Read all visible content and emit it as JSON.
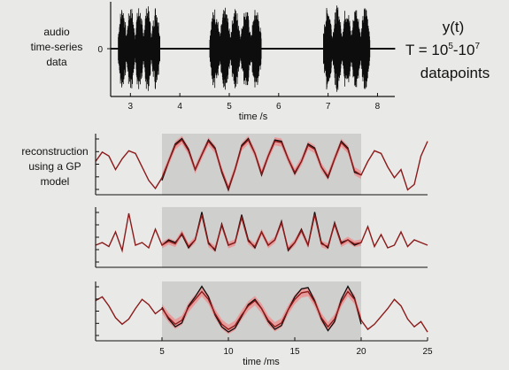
{
  "side_labels": {
    "audio": [
      "audio",
      "time-series",
      "data"
    ],
    "reconstruction": [
      "reconstruction",
      "using a GP",
      "model"
    ]
  },
  "formula": {
    "signal": "y(t)",
    "count_prefix": "T = 10",
    "exp1": "5",
    "dash": "-10",
    "exp2": "7",
    "unit": "datapoints"
  },
  "colors": {
    "waveform": "#0d0d0d",
    "reconstruction": "#8b1a1a",
    "uncertainty": "#f08a8a",
    "shaded_region": "#cfcfcd"
  },
  "chart_data": [
    {
      "type": "line",
      "name": "audio",
      "xlabel": "time /s",
      "xlim": [
        2.6,
        8.35
      ],
      "xticks": [
        3,
        4,
        5,
        6,
        7,
        8
      ],
      "yticks": [
        "0"
      ],
      "ylim": [
        -1,
        1
      ],
      "bursts": [
        {
          "start": 2.75,
          "end": 3.6,
          "amp": 0.95
        },
        {
          "start": 4.6,
          "end": 5.65,
          "amp": 0.9
        },
        {
          "start": 6.9,
          "end": 7.85,
          "amp": 0.95
        }
      ],
      "grid": false
    },
    {
      "type": "line",
      "name": "reconstruction-1",
      "xlim": [
        0,
        25
      ],
      "shaded_interval": [
        5,
        20
      ],
      "series": [
        {
          "role": "data",
          "x": [
            5,
            5.5,
            6,
            6.5,
            7,
            7.5,
            8,
            8.5,
            9,
            9.5,
            10,
            10.5,
            11,
            11.5,
            12,
            12.5,
            13,
            13.5,
            14,
            14.5,
            15,
            15.5,
            16,
            16.5,
            17,
            17.5,
            18,
            18.5,
            19,
            19.5,
            20
          ],
          "values": [
            -0.6,
            0.1,
            0.75,
            0.95,
            0.55,
            -0.2,
            0.35,
            0.9,
            0.6,
            -0.3,
            -0.95,
            -0.2,
            0.7,
            0.95,
            0.4,
            -0.4,
            0.3,
            0.9,
            0.85,
            0.2,
            -0.35,
            0.1,
            0.75,
            0.6,
            -0.1,
            -0.5,
            0.2,
            0.85,
            0.6,
            -0.3,
            -0.4
          ]
        },
        {
          "role": "reconstruction",
          "x": [
            0,
            0.5,
            1,
            1.5,
            2,
            2.5,
            3,
            3.5,
            4,
            4.5,
            5,
            5.5,
            6,
            6.5,
            7,
            7.5,
            8,
            8.5,
            9,
            9.5,
            10,
            10.5,
            11,
            11.5,
            12,
            12.5,
            13,
            13.5,
            14,
            14.5,
            15,
            15.5,
            16,
            16.5,
            17,
            17.5,
            18,
            18.5,
            19,
            19.5,
            20,
            20.5,
            21,
            21.5,
            22,
            22.5,
            23,
            23.5,
            24,
            24.5,
            25
          ],
          "values": [
            0.1,
            0.45,
            0.3,
            -0.2,
            0.2,
            0.5,
            0.4,
            -0.1,
            -0.6,
            -0.9,
            -0.5,
            0.1,
            0.7,
            0.9,
            0.5,
            -0.2,
            0.35,
            0.85,
            0.55,
            -0.25,
            -0.9,
            -0.2,
            0.65,
            0.9,
            0.4,
            -0.35,
            0.3,
            0.85,
            0.8,
            0.2,
            -0.3,
            0.1,
            0.7,
            0.55,
            -0.1,
            -0.45,
            0.2,
            0.8,
            0.55,
            -0.25,
            -0.4,
            0.1,
            0.5,
            0.4,
            -0.1,
            -0.5,
            -0.2,
            -0.95,
            -0.75,
            0.3,
            0.85
          ]
        }
      ],
      "band_halfwidth": 0.15,
      "grid": false
    },
    {
      "type": "line",
      "name": "reconstruction-2",
      "xlim": [
        0,
        25
      ],
      "shaded_interval": [
        5,
        20
      ],
      "series": [
        {
          "role": "data",
          "x": [
            5,
            5.5,
            6,
            6.5,
            7,
            7.5,
            8,
            8.5,
            9,
            9.5,
            10,
            10.5,
            11,
            11.5,
            12,
            12.5,
            13,
            13.5,
            14,
            14.5,
            15,
            15.5,
            16,
            16.5,
            17,
            17.5,
            18,
            18.5,
            19,
            19.5,
            20
          ],
          "values": [
            -0.3,
            -0.1,
            -0.2,
            0.1,
            -0.4,
            -0.1,
            0.95,
            -0.2,
            -0.5,
            0.5,
            -0.3,
            -0.2,
            0.85,
            -0.1,
            -0.4,
            0.2,
            -0.3,
            -0.1,
            0.6,
            -0.5,
            -0.2,
            0.3,
            -0.3,
            0.95,
            -0.2,
            -0.4,
            0.55,
            -0.2,
            -0.1,
            -0.3,
            -0.2
          ]
        },
        {
          "role": "reconstruction",
          "x": [
            0,
            0.5,
            1,
            1.5,
            2,
            2.5,
            3,
            3.5,
            4,
            4.5,
            5,
            5.5,
            6,
            6.5,
            7,
            7.5,
            8,
            8.5,
            9,
            9.5,
            10,
            10.5,
            11,
            11.5,
            12,
            12.5,
            13,
            13.5,
            14,
            14.5,
            15,
            15.5,
            16,
            16.5,
            17,
            17.5,
            18,
            18.5,
            19,
            19.5,
            20,
            20.5,
            21,
            21.5,
            22,
            22.5,
            23,
            23.5,
            24,
            24.5,
            25
          ],
          "values": [
            -0.3,
            -0.2,
            -0.35,
            0.2,
            -0.5,
            0.9,
            -0.3,
            -0.2,
            -0.4,
            0.3,
            -0.3,
            -0.15,
            -0.25,
            0.15,
            -0.35,
            -0.1,
            0.85,
            -0.25,
            -0.45,
            0.45,
            -0.3,
            -0.2,
            0.75,
            -0.15,
            -0.35,
            0.2,
            -0.3,
            -0.1,
            0.55,
            -0.45,
            -0.2,
            0.25,
            -0.3,
            0.85,
            -0.25,
            -0.35,
            0.5,
            -0.25,
            -0.1,
            -0.25,
            -0.2,
            0.4,
            -0.35,
            0.1,
            -0.4,
            -0.3,
            0.2,
            -0.35,
            -0.1,
            -0.2,
            -0.3
          ]
        }
      ],
      "band_halfwidth": 0.12,
      "grid": false
    },
    {
      "type": "line",
      "name": "reconstruction-3",
      "xlabel": "time /ms",
      "xlim": [
        0,
        25
      ],
      "xticks": [
        5,
        10,
        15,
        20,
        25
      ],
      "shaded_interval": [
        5,
        20
      ],
      "series": [
        {
          "role": "data",
          "x": [
            5,
            5.5,
            6,
            6.5,
            7,
            7.5,
            8,
            8.5,
            9,
            9.5,
            10,
            10.5,
            11,
            11.5,
            12,
            12.5,
            13,
            13.5,
            14,
            14.5,
            15,
            15.5,
            16,
            16.5,
            17,
            17.5,
            18,
            18.5,
            19,
            19.5,
            20
          ],
          "values": [
            0.15,
            -0.3,
            -0.6,
            -0.45,
            0.2,
            0.55,
            0.95,
            0.55,
            -0.15,
            -0.6,
            -0.8,
            -0.65,
            -0.2,
            0.25,
            0.45,
            0.1,
            -0.4,
            -0.7,
            -0.55,
            0.05,
            0.55,
            0.85,
            0.9,
            0.4,
            -0.3,
            -0.75,
            -0.4,
            0.45,
            0.95,
            0.5,
            -0.5
          ]
        },
        {
          "role": "reconstruction",
          "x": [
            0,
            0.5,
            1,
            1.5,
            2,
            2.5,
            3,
            3.5,
            4,
            4.5,
            5,
            5.5,
            6,
            6.5,
            7,
            7.5,
            8,
            8.5,
            9,
            9.5,
            10,
            10.5,
            11,
            11.5,
            12,
            12.5,
            13,
            13.5,
            14,
            14.5,
            15,
            15.5,
            16,
            16.5,
            17,
            17.5,
            18,
            18.5,
            19,
            19.5,
            20,
            20.5,
            21,
            21.5,
            22,
            22.5,
            23,
            23.5,
            24,
            24.5,
            25
          ],
          "values": [
            0.4,
            0.55,
            0.2,
            -0.25,
            -0.5,
            -0.3,
            0.1,
            0.45,
            0.25,
            -0.1,
            0.1,
            -0.25,
            -0.5,
            -0.35,
            0.15,
            0.45,
            0.75,
            0.45,
            -0.1,
            -0.5,
            -0.7,
            -0.55,
            -0.15,
            0.2,
            0.4,
            0.1,
            -0.35,
            -0.6,
            -0.45,
            0.05,
            0.45,
            0.7,
            0.75,
            0.35,
            -0.25,
            -0.6,
            -0.3,
            0.35,
            0.75,
            0.45,
            -0.35,
            -0.7,
            -0.5,
            -0.2,
            0.1,
            0.45,
            0.2,
            -0.3,
            -0.6,
            -0.4,
            -0.8
          ]
        }
      ],
      "band_halfwidth": 0.18,
      "grid": false
    }
  ]
}
